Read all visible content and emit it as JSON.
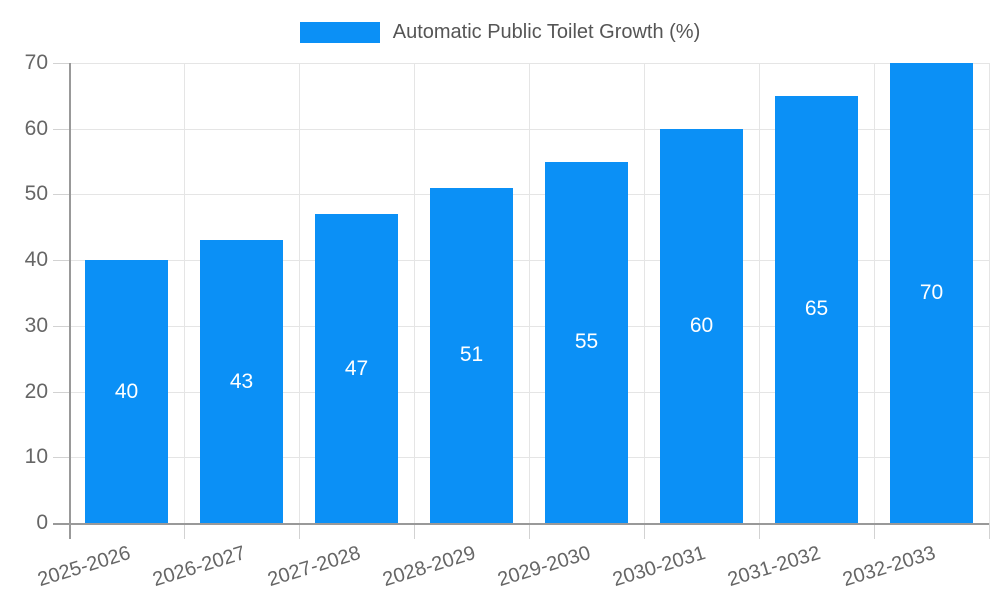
{
  "legend": {
    "label": "Automatic Public Toilet Growth (%)"
  },
  "chart_data": {
    "type": "bar",
    "title": "",
    "xlabel": "",
    "ylabel": "",
    "categories": [
      "2025-2026",
      "2026-2027",
      "2027-2028",
      "2028-2029",
      "2029-2030",
      "2030-2031",
      "2031-2032",
      "2032-2033"
    ],
    "series": [
      {
        "name": "Automatic Public Toilet Growth (%)",
        "values": [
          40,
          43,
          47,
          51,
          55,
          60,
          65,
          70
        ]
      }
    ],
    "value_labels": [
      40,
      43,
      47,
      51,
      55,
      60,
      65,
      70
    ],
    "ylim": [
      0,
      70
    ],
    "yticks": [
      0,
      10,
      20,
      30,
      40,
      50,
      60,
      70
    ],
    "grid": true,
    "legend_position": "top",
    "x_label_rotation_deg": -17
  },
  "colors": {
    "bar": "#0b90f6",
    "grid": "#e5e5e5",
    "axis": "#999999",
    "tick": "#d2d2d2",
    "tick_label": "#666666",
    "value_label": "#ffffff",
    "legend_text": "#555555",
    "background": "#ffffff"
  }
}
